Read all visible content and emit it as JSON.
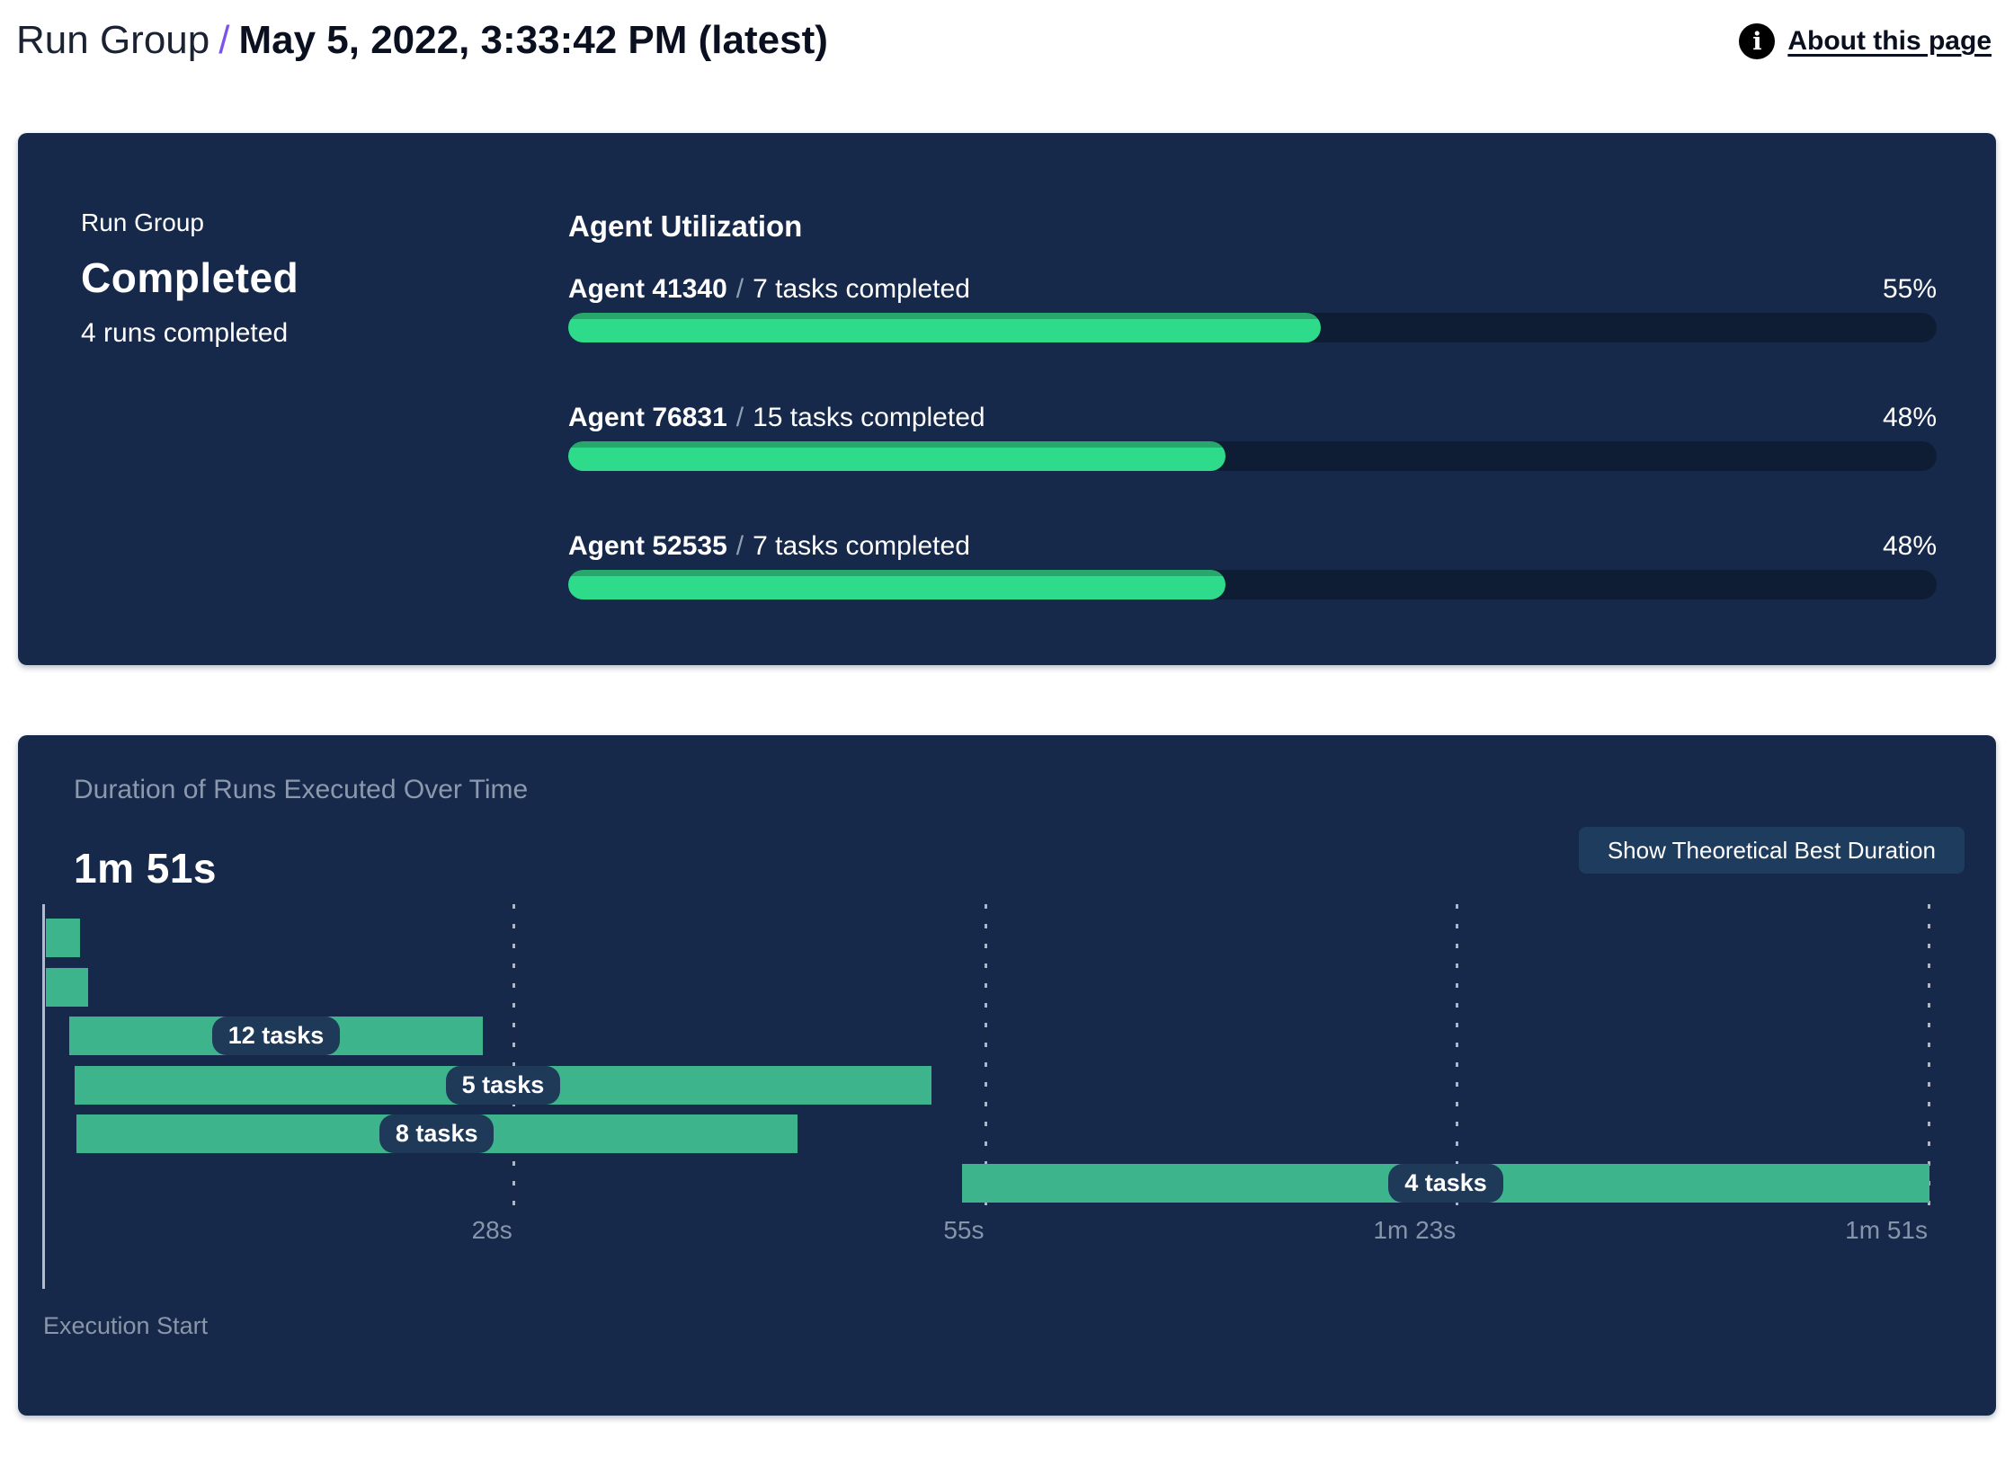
{
  "header": {
    "breadcrumb_root": "Run Group",
    "separator": "/",
    "title": "May 5, 2022, 3:33:42 PM (latest)",
    "about_link": "About this page",
    "info_glyph": "i",
    "accent_color": "#7b52f0"
  },
  "status_card": {
    "label": "Run Group",
    "status": "Completed",
    "subtext": "4 runs completed",
    "background_color": "#16294a",
    "utilization": {
      "heading": "Agent Utilization",
      "separator": "/",
      "fill_color": "#2edb8a",
      "track_color": "#0e1d33",
      "agents": [
        {
          "name": "Agent 41340",
          "tasks": "7 tasks completed",
          "percent": 55
        },
        {
          "name": "Agent 76831",
          "tasks": "15 tasks completed",
          "percent": 48
        },
        {
          "name": "Agent 52535",
          "tasks": "7 tasks completed",
          "percent": 48
        }
      ]
    }
  },
  "duration_card": {
    "title": "Duration of Runs Executed Over Time",
    "total_duration": "1m 51s",
    "button_label": "Show Theoretical Best Duration",
    "axis_label": "Execution Start",
    "bar_color": "#3eb48c"
  },
  "chart_data": [
    {
      "type": "bar",
      "title": "Agent Utilization",
      "categories": [
        "Agent 41340",
        "Agent 76831",
        "Agent 52535"
      ],
      "values": [
        55,
        48,
        48
      ],
      "unit": "%",
      "xlim": [
        0,
        100
      ],
      "annotations": [
        "7 tasks completed",
        "15 tasks completed",
        "7 tasks completed"
      ]
    },
    {
      "type": "gantt",
      "title": "Duration of Runs Executed Over Time",
      "total": "1m 51s",
      "xlabel": "Execution Start",
      "x_range_seconds": [
        0,
        111
      ],
      "x_ticks": [
        "28s",
        "55s",
        "1m 23s",
        "1m 51s"
      ],
      "grid": true,
      "bars": [
        {
          "start_s": 0.2,
          "end_s": 2.2,
          "label": ""
        },
        {
          "start_s": 0.2,
          "end_s": 2.7,
          "label": ""
        },
        {
          "start_s": 1.6,
          "end_s": 25.9,
          "label": "12 tasks"
        },
        {
          "start_s": 1.9,
          "end_s": 52.3,
          "label": "5 tasks"
        },
        {
          "start_s": 2.0,
          "end_s": 44.4,
          "label": "8 tasks"
        },
        {
          "start_s": 54.1,
          "end_s": 111,
          "label": "4 tasks"
        }
      ]
    }
  ]
}
